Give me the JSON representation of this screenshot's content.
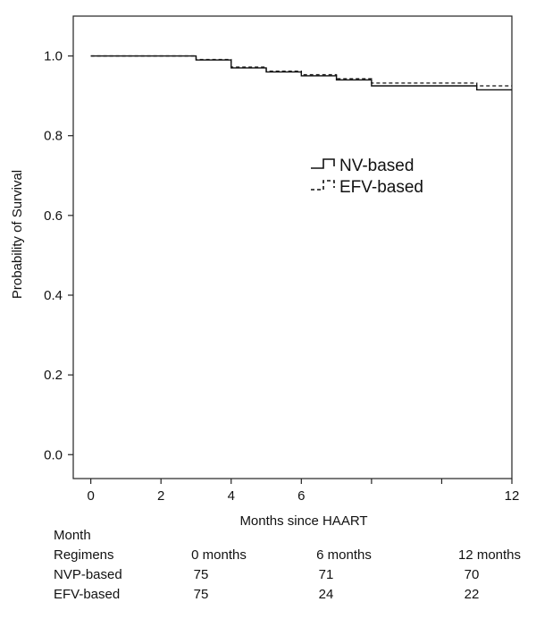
{
  "chart_data": {
    "type": "line",
    "subtype": "kaplan-meier step",
    "xlabel": "Months since HAART",
    "ylabel": "Probability of Survival",
    "xlim": [
      -0.5,
      12
    ],
    "ylim": [
      -0.06,
      1.1
    ],
    "x_ticks": [
      0,
      2,
      4,
      6,
      8,
      10,
      12
    ],
    "x_tick_labels": [
      "0",
      "2",
      "4",
      "6",
      "",
      "",
      "12"
    ],
    "y_ticks": [
      0.0,
      0.2,
      0.4,
      0.6,
      0.8,
      1.0
    ],
    "y_tick_labels": [
      "0.0",
      "0.2",
      "0.4",
      "0.6",
      "0.8",
      "1.0"
    ],
    "grid": false,
    "legend_position": "center-right",
    "series": [
      {
        "name": "NV-based",
        "line_style": "solid",
        "color": "#111111",
        "x": [
          0,
          3,
          4,
          5,
          6,
          7,
          8,
          11,
          12
        ],
        "y": [
          1.0,
          0.99,
          0.97,
          0.96,
          0.95,
          0.94,
          0.925,
          0.915,
          0.915
        ]
      },
      {
        "name": "EFV-based",
        "line_style": "dashed",
        "color": "#111111",
        "x": [
          0,
          3,
          4,
          5,
          6,
          7,
          8,
          11,
          12
        ],
        "y": [
          1.0,
          0.991,
          0.972,
          0.962,
          0.953,
          0.943,
          0.932,
          0.925,
          0.925
        ]
      }
    ]
  },
  "risk_table": {
    "header_label": "Month",
    "row_label_header": "Regimens",
    "columns": [
      "0 months",
      "6   months",
      "12 months"
    ],
    "rows": [
      {
        "label": "NVP-based",
        "values": [
          "75",
          "71",
          "70"
        ]
      },
      {
        "label": "EFV-based",
        "values": [
          "75",
          "24",
          "22"
        ]
      }
    ]
  }
}
